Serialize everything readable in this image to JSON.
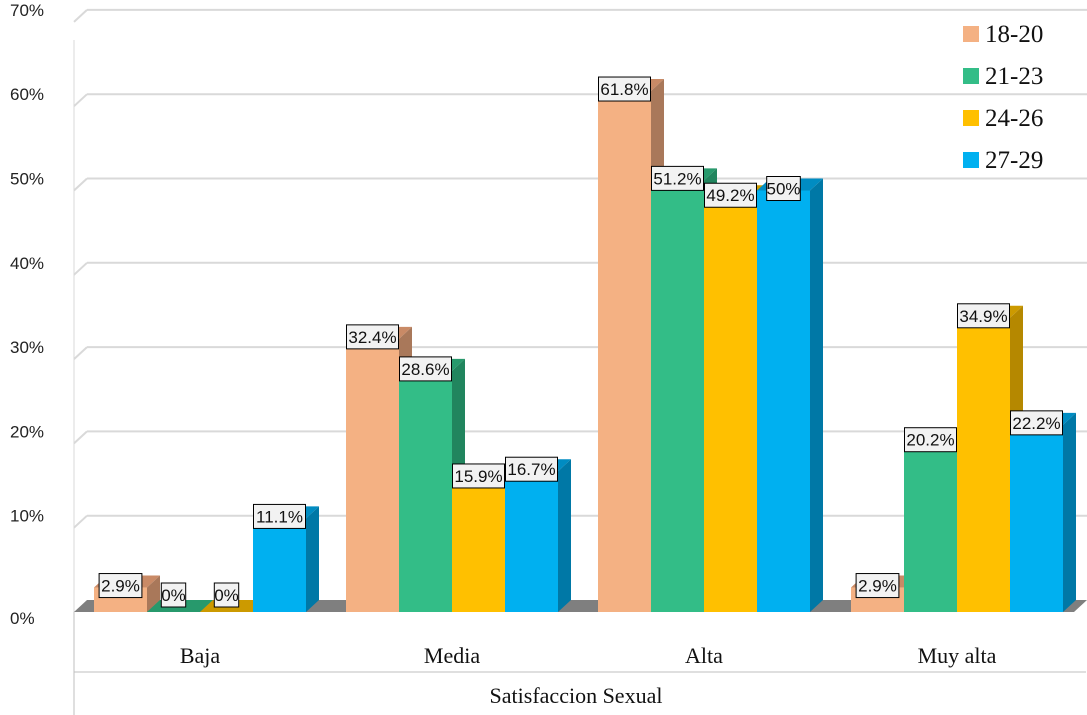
{
  "chart_data": {
    "type": "bar",
    "xlabel": "Satisfaccion Sexual",
    "ylabel": "",
    "ylim": [
      0,
      70
    ],
    "yticks": [
      "0%",
      "10%",
      "20%",
      "30%",
      "40%",
      "50%",
      "60%",
      "70%"
    ],
    "categories": [
      "Baja",
      "Media",
      "Alta",
      "Muy alta"
    ],
    "series": [
      {
        "name": "18-20",
        "values": [
          2.9,
          32.4,
          61.8,
          2.9
        ],
        "labels": [
          "2.9%",
          "32.4%",
          "61.8%",
          "2.9%"
        ]
      },
      {
        "name": "21-23",
        "values": [
          0,
          28.6,
          51.2,
          20.2
        ],
        "labels": [
          "0%",
          "28.6%",
          "51.2%",
          "20.2%"
        ]
      },
      {
        "name": "24-26",
        "values": [
          0,
          15.9,
          49.2,
          34.9
        ],
        "labels": [
          "0%",
          "15.9%",
          "49.2%",
          "34.9%"
        ]
      },
      {
        "name": "27-29",
        "values": [
          11.1,
          16.7,
          50,
          22.2
        ],
        "labels": [
          "11.1%",
          "16.7%",
          "50%",
          "22.2%"
        ]
      }
    ],
    "colors": {
      "18-20": {
        "front": "#f4b183",
        "side": "#a9785a",
        "top": "#c98a66"
      },
      "21-23": {
        "front": "#33bd87",
        "side": "#21855e",
        "top": "#27996c"
      },
      "24-26": {
        "front": "#ffc000",
        "side": "#b58800",
        "top": "#cc9a00"
      },
      "27-29": {
        "front": "#00b0f0",
        "side": "#0078a6",
        "top": "#008cc2"
      }
    },
    "grid": true,
    "legend_position": "top-right",
    "style": "3d-clustered-column"
  }
}
